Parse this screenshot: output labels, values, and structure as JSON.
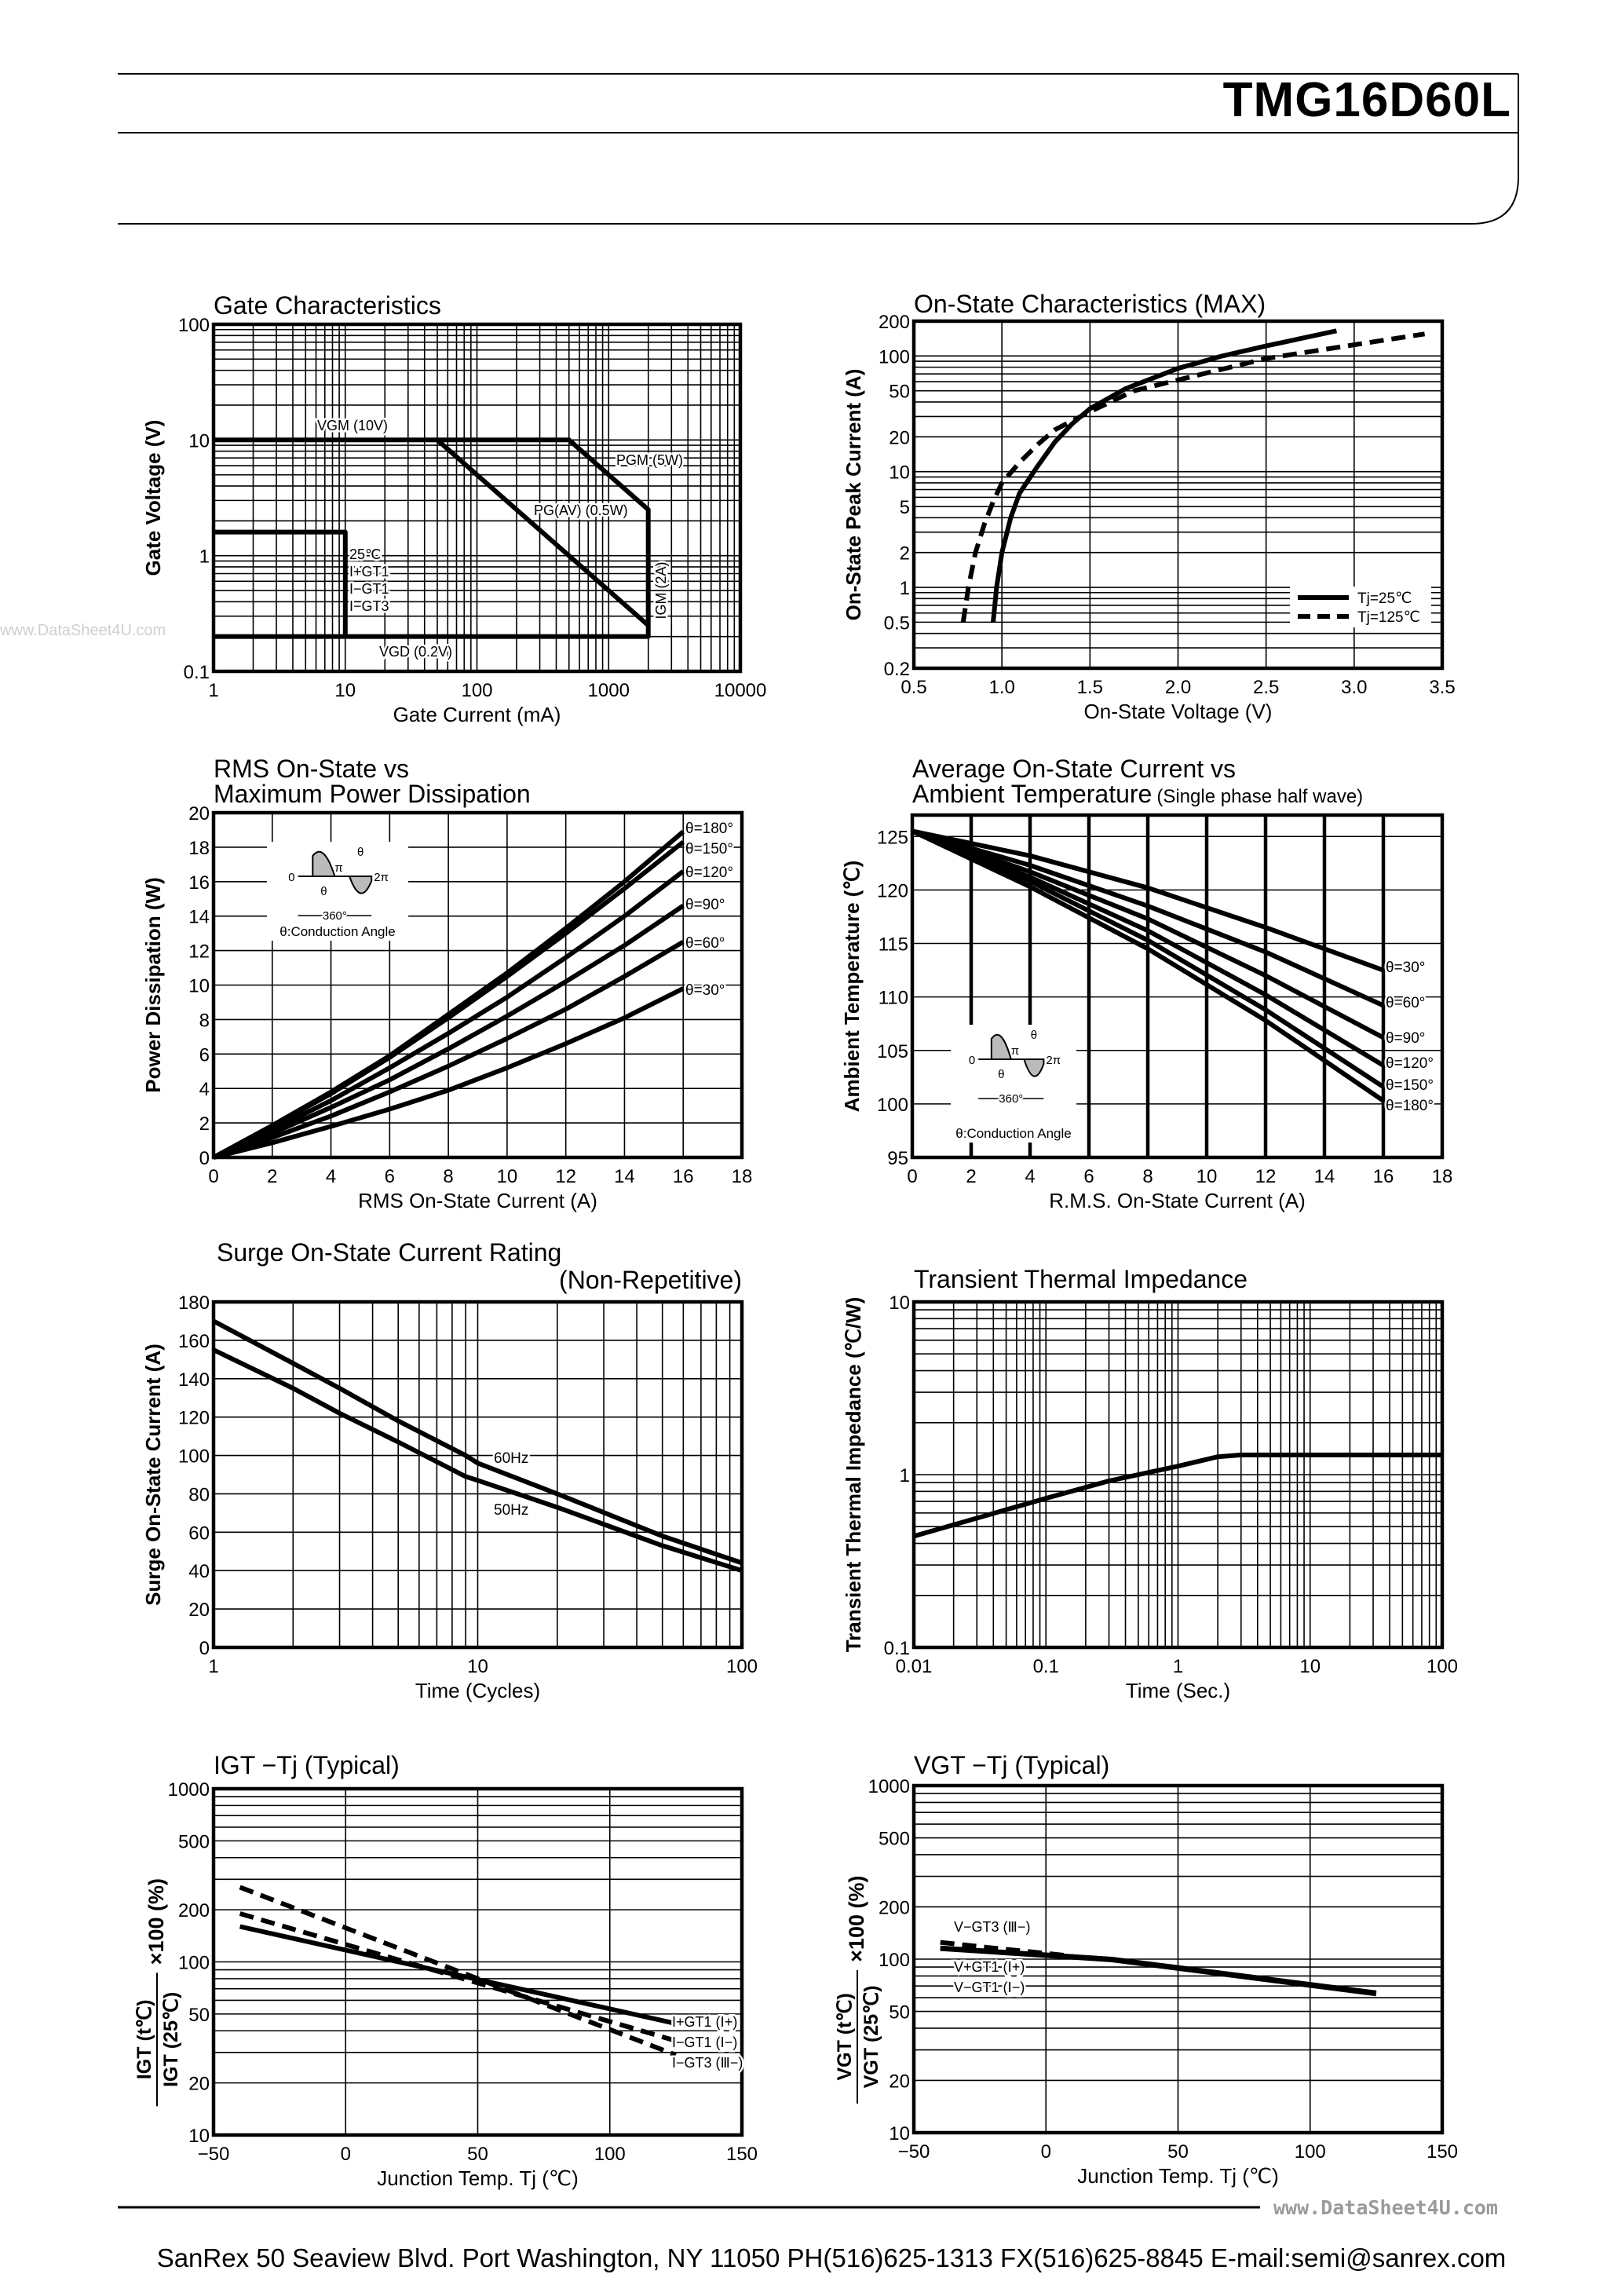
{
  "header": {
    "part_number": "TMG16D60L"
  },
  "watermark": {
    "left": "www.DataSheet4U.com",
    "footer": "www.DataSheet4U.com"
  },
  "footer": {
    "address": "SanRex 50 Seaview Blvd. Port Washington, NY 11050 PH(516)625-1313 FX(516)625-8845 E-mail:semi@sanrex.com"
  },
  "inset": {
    "caption": "θ:Conduction Angle",
    "zero": "0",
    "pi": "π",
    "two_pi": "2π",
    "theta": "θ",
    "deg360": "360°"
  },
  "chart_data": [
    {
      "type": "line",
      "title": "Gate Characteristics",
      "xlabel": "Gate Current (mA)",
      "ylabel": "Gate Voltage (V)",
      "xscale": "log",
      "yscale": "log",
      "xlim": [
        1,
        10000
      ],
      "ylim": [
        0.1,
        100
      ],
      "xticks": [
        "1",
        "10",
        "100",
        "1000",
        "10000"
      ],
      "yticks": [
        "0.1",
        "1",
        "10",
        "100"
      ],
      "grid": true,
      "series": [
        {
          "name": "",
          "style": "solid",
          "x": [
            1,
            500,
            2000,
            2000,
            1
          ],
          "y": [
            10,
            10,
            2.5,
            0.2,
            0.2
          ]
        },
        {
          "name": "",
          "style": "solid",
          "x": [
            50,
            2000
          ],
          "y": [
            10,
            0.25
          ]
        },
        {
          "name": "",
          "style": "solid",
          "x": [
            1,
            10,
            10
          ],
          "y": [
            1.6,
            1.6,
            0.2
          ]
        }
      ],
      "annotations": [
        "VGM (10V)",
        "PGM (5W)",
        "PG(AV) (0.5W)",
        "25℃",
        "I+GT1",
        "I−GT1",
        "I−GT3",
        "IGM (2A)",
        "VGD (0.2V)"
      ]
    },
    {
      "type": "line",
      "title": "On-State Characteristics (MAX)",
      "xlabel": "On-State Voltage (V)",
      "ylabel": "On-State Peak Current (A)",
      "xscale": "linear",
      "yscale": "log",
      "xlim": [
        0.5,
        3.5
      ],
      "ylim": [
        0.2,
        200
      ],
      "xticks": [
        "0.5",
        "1.0",
        "1.5",
        "2.0",
        "2.5",
        "3.0",
        "3.5"
      ],
      "yticks": [
        "0.2",
        "0.5",
        "1",
        "2",
        "5",
        "10",
        "20",
        "50",
        "100",
        "200"
      ],
      "grid": true,
      "legend": "bottom-right",
      "series": [
        {
          "name": "Tj=25℃",
          "style": "solid",
          "x": [
            0.95,
            0.97,
            1.0,
            1.05,
            1.1,
            1.2,
            1.3,
            1.4,
            1.5,
            1.7,
            2.0,
            2.25,
            2.5,
            2.9
          ],
          "y": [
            0.5,
            1,
            2,
            4,
            6.5,
            11,
            18,
            26,
            35,
            52,
            78,
            100,
            122,
            165
          ]
        },
        {
          "name": "Tj=125℃",
          "style": "dashed",
          "x": [
            0.78,
            0.81,
            0.85,
            0.9,
            0.95,
            1.0,
            1.1,
            1.2,
            1.3,
            1.5,
            1.75,
            2.0,
            2.5,
            3.0,
            3.4
          ],
          "y": [
            0.5,
            1,
            2,
            3.5,
            5.5,
            8,
            12,
            17,
            23,
            33,
            50,
            62,
            95,
            125,
            155
          ]
        }
      ]
    },
    {
      "type": "line",
      "title": "RMS On-State vs",
      "title_line2": "Maximum Power Dissipation",
      "xlabel": "RMS On-State Current (A)",
      "ylabel": "Power Dissipation (W)",
      "xscale": "linear",
      "yscale": "linear",
      "xlim": [
        0,
        18
      ],
      "ylim": [
        0,
        20
      ],
      "xticks": [
        "0",
        "2",
        "4",
        "6",
        "8",
        "10",
        "12",
        "14",
        "16",
        "18"
      ],
      "yticks": [
        "0",
        "2",
        "4",
        "6",
        "8",
        "10",
        "12",
        "14",
        "16",
        "18",
        "20"
      ],
      "grid": true,
      "series": [
        {
          "name": "θ=180°",
          "style": "solid",
          "x": [
            0,
            2,
            4,
            6,
            8,
            10,
            12,
            14,
            16
          ],
          "y": [
            0,
            1.85,
            3.8,
            5.9,
            8.3,
            10.7,
            13.3,
            16.0,
            18.9
          ]
        },
        {
          "name": "θ=150°",
          "style": "solid",
          "x": [
            0,
            2,
            4,
            6,
            8,
            10,
            12,
            14,
            16
          ],
          "y": [
            0,
            1.8,
            3.7,
            5.8,
            8.1,
            10.5,
            13.0,
            15.6,
            18.3
          ]
        },
        {
          "name": "θ=120°",
          "style": "solid",
          "x": [
            0,
            2,
            4,
            6,
            8,
            10,
            12,
            14,
            16
          ],
          "y": [
            0,
            1.6,
            3.3,
            5.2,
            7.2,
            9.3,
            11.6,
            14.0,
            16.6
          ]
        },
        {
          "name": "θ=90°",
          "style": "solid",
          "x": [
            0,
            2,
            4,
            6,
            8,
            10,
            12,
            14,
            16
          ],
          "y": [
            0,
            1.4,
            2.9,
            4.5,
            6.3,
            8.2,
            10.2,
            12.3,
            14.6
          ]
        },
        {
          "name": "θ=60°",
          "style": "solid",
          "x": [
            0,
            2,
            4,
            6,
            8,
            10,
            12,
            14,
            16
          ],
          "y": [
            0,
            1.15,
            2.4,
            3.8,
            5.3,
            6.9,
            8.6,
            10.5,
            12.5
          ]
        },
        {
          "name": "θ=30°",
          "style": "solid",
          "x": [
            0,
            2,
            4,
            6,
            8,
            10,
            12,
            14,
            16
          ],
          "y": [
            0,
            0.85,
            1.8,
            2.8,
            3.9,
            5.2,
            6.6,
            8.1,
            9.8
          ]
        }
      ]
    },
    {
      "type": "line",
      "title": "Average On-State Current vs",
      "title_line2": "Ambient Temperature",
      "title_note": "(Single phase half wave)",
      "xlabel": "R.M.S. On-State Current (A)",
      "ylabel": "Ambient Temperature (℃)",
      "xscale": "linear",
      "yscale": "linear",
      "xlim": [
        0,
        18
      ],
      "ylim": [
        95,
        127
      ],
      "xticks": [
        "0",
        "2",
        "4",
        "6",
        "8",
        "10",
        "12",
        "14",
        "16",
        "18"
      ],
      "yticks": [
        "95",
        "100",
        "105",
        "110",
        "115",
        "120",
        "125"
      ],
      "grid": true,
      "series": [
        {
          "name": "θ=30°",
          "style": "solid",
          "x": [
            0,
            4,
            8,
            12,
            16
          ],
          "y": [
            125.5,
            123.2,
            120.2,
            116.5,
            112.5
          ]
        },
        {
          "name": "θ=60°",
          "style": "solid",
          "x": [
            0,
            4,
            8,
            12,
            16
          ],
          "y": [
            125.5,
            122.3,
            118.5,
            114.2,
            109.2
          ]
        },
        {
          "name": "θ=90°",
          "style": "solid",
          "x": [
            0,
            4,
            8,
            12,
            16
          ],
          "y": [
            125.5,
            121.7,
            117.3,
            112.0,
            106.2
          ]
        },
        {
          "name": "θ=120°",
          "style": "solid",
          "x": [
            0,
            4,
            8,
            12,
            16
          ],
          "y": [
            125.5,
            121.2,
            116.2,
            110.2,
            103.6
          ]
        },
        {
          "name": "θ=150°",
          "style": "solid",
          "x": [
            0,
            4,
            8,
            12,
            16
          ],
          "y": [
            125.5,
            120.8,
            115.3,
            108.8,
            101.6
          ]
        },
        {
          "name": "θ=180°",
          "style": "solid",
          "x": [
            0,
            4,
            8,
            12,
            16
          ],
          "y": [
            125.5,
            120.3,
            114.5,
            107.8,
            100.3
          ]
        }
      ]
    },
    {
      "type": "line",
      "title": "Surge On-State Current Rating",
      "title_line2": "(Non-Repetitive)",
      "xlabel": "Time (Cycles)",
      "ylabel": "Surge On-State Current (A)",
      "xscale": "log",
      "yscale": "linear",
      "xlim": [
        1,
        100
      ],
      "ylim": [
        0,
        180
      ],
      "xticks": [
        "1",
        "10",
        "100"
      ],
      "yticks": [
        "0",
        "20",
        "40",
        "60",
        "80",
        "100",
        "120",
        "140",
        "160",
        "180"
      ],
      "grid": true,
      "series": [
        {
          "name": "60Hz",
          "style": "solid",
          "x": [
            1,
            2,
            3,
            5,
            9,
            10,
            20,
            50,
            100
          ],
          "y": [
            170,
            148,
            135,
            118,
            100,
            96,
            80,
            58,
            44
          ]
        },
        {
          "name": "50Hz",
          "style": "solid",
          "x": [
            1,
            2,
            3,
            5,
            9,
            10,
            20,
            50,
            100
          ],
          "y": [
            155,
            135,
            122,
            107,
            89,
            87,
            73,
            53,
            40
          ]
        }
      ]
    },
    {
      "type": "line",
      "title": "Transient Thermal Impedance",
      "xlabel": "Time (Sec.)",
      "ylabel": "Transient Thermal Impedance (℃/W)",
      "xscale": "log",
      "yscale": "log",
      "xlim": [
        0.01,
        100
      ],
      "ylim": [
        0.1,
        10
      ],
      "xticks": [
        "0.01",
        "0.1",
        "1",
        "10",
        "100"
      ],
      "yticks": [
        "0.1",
        "1",
        "10"
      ],
      "grid": true,
      "series": [
        {
          "name": "",
          "style": "solid",
          "x": [
            0.01,
            0.03,
            0.1,
            0.3,
            1,
            2,
            3,
            100
          ],
          "y": [
            0.44,
            0.56,
            0.73,
            0.92,
            1.12,
            1.27,
            1.3,
            1.3
          ]
        }
      ]
    },
    {
      "type": "line",
      "title": "IGT −Tj (Typical)",
      "xlabel": "Junction Temp. Tj (℃)",
      "ylabel_num": "IGT (t℃)",
      "ylabel_den": "IGT (25℃)",
      "ylabel_suffix": "×100 (%)",
      "xscale": "linear",
      "yscale": "log",
      "xlim": [
        -50,
        150
      ],
      "ylim": [
        10,
        1000
      ],
      "xticks": [
        "−50",
        "0",
        "50",
        "100",
        "150"
      ],
      "yticks": [
        "10",
        "20",
        "50",
        "100",
        "200",
        "500",
        "1000"
      ],
      "grid": true,
      "series": [
        {
          "name": "I+GT1 (Ⅰ+)",
          "style": "solid",
          "x": [
            -40,
            125
          ],
          "y": [
            160,
            44
          ]
        },
        {
          "name": "I−GT1 (Ⅰ−)",
          "style": "dashed",
          "x": [
            -40,
            125
          ],
          "y": [
            190,
            35
          ]
        },
        {
          "name": "I−GT3 (Ⅲ−)",
          "style": "dashed",
          "x": [
            -40,
            125
          ],
          "y": [
            270,
            29
          ]
        }
      ]
    },
    {
      "type": "line",
      "title": "VGT −Tj (Typical)",
      "xlabel": "Junction Temp. Tj (℃)",
      "ylabel_num": "VGT (t℃)",
      "ylabel_den": "VGT (25℃)",
      "ylabel_suffix": "×100 (%)",
      "xscale": "linear",
      "yscale": "log",
      "xlim": [
        -50,
        150
      ],
      "ylim": [
        10,
        1000
      ],
      "xticks": [
        "−50",
        "0",
        "50",
        "100",
        "150"
      ],
      "yticks": [
        "10",
        "20",
        "50",
        "100",
        "200",
        "500",
        "1000"
      ],
      "grid": true,
      "series": [
        {
          "name": "V−GT3 (Ⅲ−)",
          "style": "dashed",
          "x": [
            -40,
            -20,
            0,
            10
          ],
          "y": [
            125,
            116,
            108,
            104
          ]
        },
        {
          "name": "V+GT1 (Ⅰ+)",
          "style": "solid",
          "x": [
            -40,
            25,
            125
          ],
          "y": [
            116,
            100,
            64
          ]
        },
        {
          "name": "V−GT1 (Ⅰ−)",
          "style": "solid",
          "x": [
            -40,
            25,
            125
          ],
          "y": [
            115,
            99,
            63
          ]
        }
      ]
    }
  ]
}
